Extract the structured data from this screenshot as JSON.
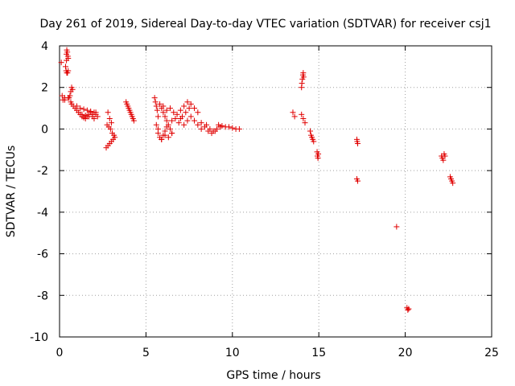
{
  "chart_data": {
    "type": "scatter",
    "title": "Day 261 of 2019, Sidereal Day-to-day VTEC variation (SDTVAR) for receiver csj1",
    "xlabel": "GPS time / hours",
    "ylabel": "SDTVAR / TECUs",
    "xlim": [
      0,
      25
    ],
    "ylim": [
      -10,
      4
    ],
    "xticks": [
      "0",
      "5",
      "10",
      "15",
      "20",
      "25"
    ],
    "yticks": [
      "4",
      "2",
      "0",
      "-2",
      "-4",
      "-6",
      "-8",
      "-10"
    ],
    "grid": true,
    "marker": "+",
    "color": "#e00000",
    "series": [
      {
        "name": "SDTVAR",
        "x": [
          0.1,
          0.15,
          0.2,
          0.3,
          0.35,
          0.4,
          0.4,
          0.42,
          0.45,
          0.48,
          0.5,
          0.38,
          0.42,
          0.46,
          0.5,
          0.3,
          0.5,
          0.6,
          0.65,
          0.7,
          0.75,
          0.55,
          0.65,
          0.7,
          0.8,
          0.9,
          1.0,
          1.1,
          1.2,
          1.3,
          1.4,
          1.5,
          1.6,
          1.7,
          1.8,
          1.9,
          2.0,
          2.1,
          2.2,
          1.0,
          1.2,
          1.4,
          1.6,
          1.8,
          2.0,
          1.3,
          1.5,
          1.7,
          1.9,
          2.1,
          2.7,
          2.8,
          2.9,
          3.0,
          3.1,
          3.2,
          2.75,
          2.85,
          2.95,
          3.05,
          3.15,
          2.8,
          2.9,
          3.0,
          3.85,
          3.9,
          3.95,
          4.0,
          4.05,
          4.1,
          4.15,
          4.2,
          4.25,
          4.3,
          5.5,
          5.55,
          5.6,
          5.65,
          5.7,
          5.6,
          5.7,
          5.8,
          5.9,
          6.0,
          6.1,
          6.2,
          5.8,
          5.9,
          6.0,
          6.1,
          6.2,
          6.3,
          6.4,
          6.5,
          5.7,
          5.9,
          6.1,
          6.3,
          6.5,
          6.0,
          6.2,
          6.4,
          6.6,
          6.8,
          7.0,
          6.5,
          6.7,
          6.9,
          7.1,
          7.3,
          7.5,
          7.0,
          7.2,
          7.4,
          7.6,
          7.8,
          8.0,
          7.2,
          7.4,
          7.6,
          7.8,
          8.0,
          8.2,
          8.2,
          8.4,
          8.6,
          8.8,
          9.0,
          8.5,
          8.7,
          8.9,
          9.1,
          9.3,
          9.2,
          9.4,
          9.6,
          9.8,
          10.0,
          10.2,
          10.4,
          14.0,
          14.02,
          14.05,
          14.08,
          14.1,
          14.12,
          14.0,
          14.1,
          14.2,
          13.5,
          13.6,
          14.5,
          14.55,
          14.6,
          14.65,
          14.7,
          14.9,
          14.92,
          14.95,
          14.97,
          17.2,
          17.22,
          17.25,
          17.2,
          17.25,
          19.5,
          20.1,
          20.15,
          20.2,
          22.1,
          22.15,
          22.2,
          22.25,
          22.3,
          22.6,
          22.65,
          22.7,
          22.75
        ],
        "y": [
          3.2,
          1.6,
          1.4,
          1.5,
          3.0,
          3.6,
          3.3,
          3.8,
          3.7,
          3.5,
          3.4,
          2.8,
          2.7,
          2.7,
          2.8,
          1.4,
          1.5,
          1.6,
          1.8,
          2.0,
          1.9,
          1.5,
          1.3,
          1.2,
          1.1,
          1.0,
          0.9,
          0.8,
          0.7,
          0.6,
          0.55,
          0.5,
          0.6,
          0.7,
          0.8,
          0.6,
          0.5,
          0.7,
          0.6,
          1.1,
          1.0,
          0.95,
          0.9,
          0.85,
          0.8,
          0.7,
          0.65,
          0.6,
          0.7,
          0.8,
          -0.9,
          -0.8,
          -0.7,
          -0.6,
          -0.5,
          -0.4,
          0.2,
          0.1,
          0.0,
          -0.2,
          -0.3,
          0.8,
          0.5,
          0.3,
          1.3,
          1.2,
          1.1,
          1.0,
          0.9,
          0.8,
          0.7,
          0.6,
          0.5,
          0.4,
          1.5,
          1.3,
          1.1,
          0.9,
          0.6,
          0.2,
          -0.2,
          -0.4,
          -0.5,
          -0.3,
          -0.1,
          0.1,
          1.2,
          1.0,
          0.8,
          0.6,
          0.4,
          0.2,
          0.0,
          -0.2,
          0.0,
          -0.5,
          -0.3,
          -0.4,
          -0.2,
          1.1,
          0.9,
          1.0,
          0.8,
          0.7,
          0.9,
          0.4,
          0.5,
          0.3,
          0.6,
          0.8,
          1.0,
          0.5,
          1.1,
          1.3,
          1.2,
          1.0,
          0.8,
          0.2,
          0.4,
          0.6,
          0.4,
          0.2,
          0.0,
          0.3,
          0.1,
          -0.1,
          -0.2,
          -0.1,
          0.2,
          0.0,
          -0.1,
          0.0,
          0.1,
          0.2,
          0.15,
          0.1,
          0.1,
          0.05,
          0.0,
          0.0,
          2.0,
          2.2,
          2.4,
          2.6,
          2.7,
          2.5,
          0.7,
          0.5,
          0.3,
          0.8,
          0.6,
          -0.1,
          -0.3,
          -0.4,
          -0.5,
          -0.6,
          -1.1,
          -1.3,
          -1.4,
          -1.2,
          -0.5,
          -0.6,
          -0.7,
          -2.4,
          -2.5,
          -4.7,
          -8.6,
          -8.7,
          -8.65,
          -1.3,
          -1.4,
          -1.5,
          -1.2,
          -1.3,
          -2.3,
          -2.4,
          -2.5,
          -2.6
        ]
      }
    ]
  }
}
